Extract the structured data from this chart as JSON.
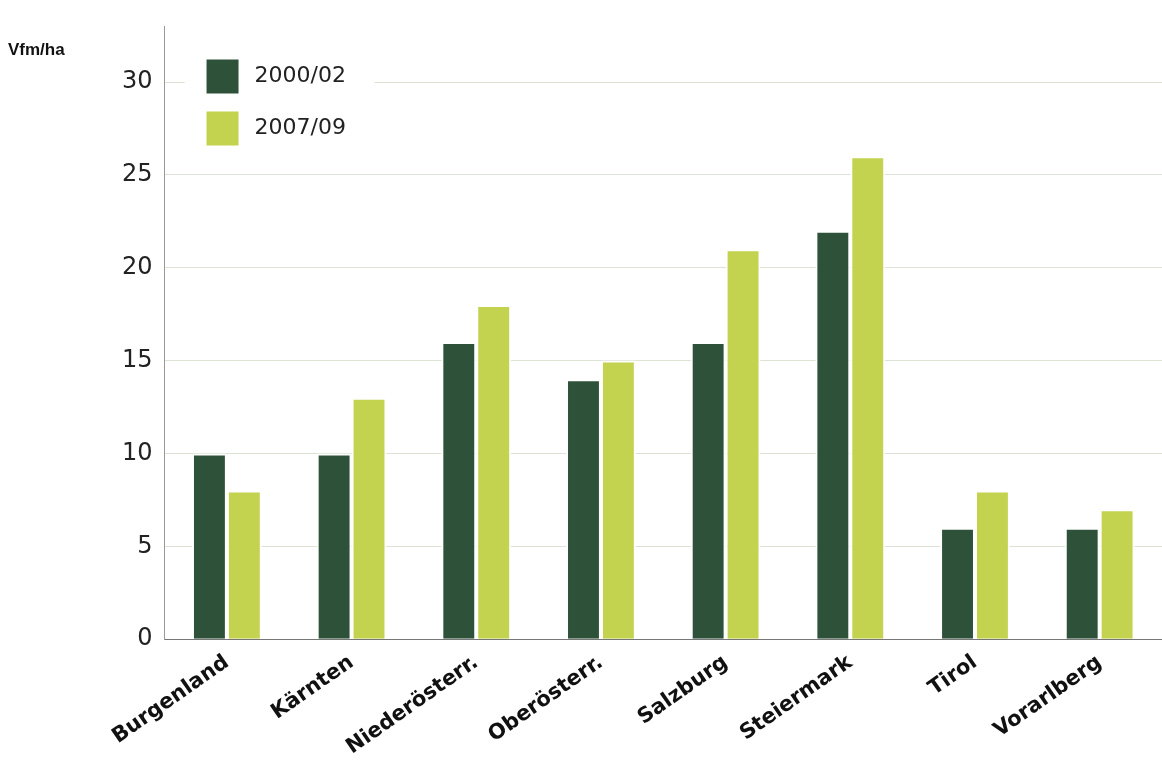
{
  "chart_data": {
    "type": "bar",
    "ylabel": "Vfm/ha",
    "categories": [
      "Burgenland",
      "Kärnten",
      "Niederösterr.",
      "Oberösterr.",
      "Salzburg",
      "Steiermark",
      "Tirol",
      "Vorarlberg"
    ],
    "series": [
      {
        "name": "2000/02",
        "color": "#2e5239",
        "values": [
          10,
          10,
          16,
          14,
          16,
          22,
          6,
          6
        ]
      },
      {
        "name": "2007/09",
        "color": "#c3d24f",
        "values": [
          8,
          13,
          18,
          15,
          21,
          26,
          8,
          7
        ]
      }
    ],
    "ylim": [
      0,
      33
    ],
    "yticks": [
      0,
      5,
      10,
      15,
      20,
      25,
      30
    ],
    "grid": "y",
    "legend": "top left"
  }
}
